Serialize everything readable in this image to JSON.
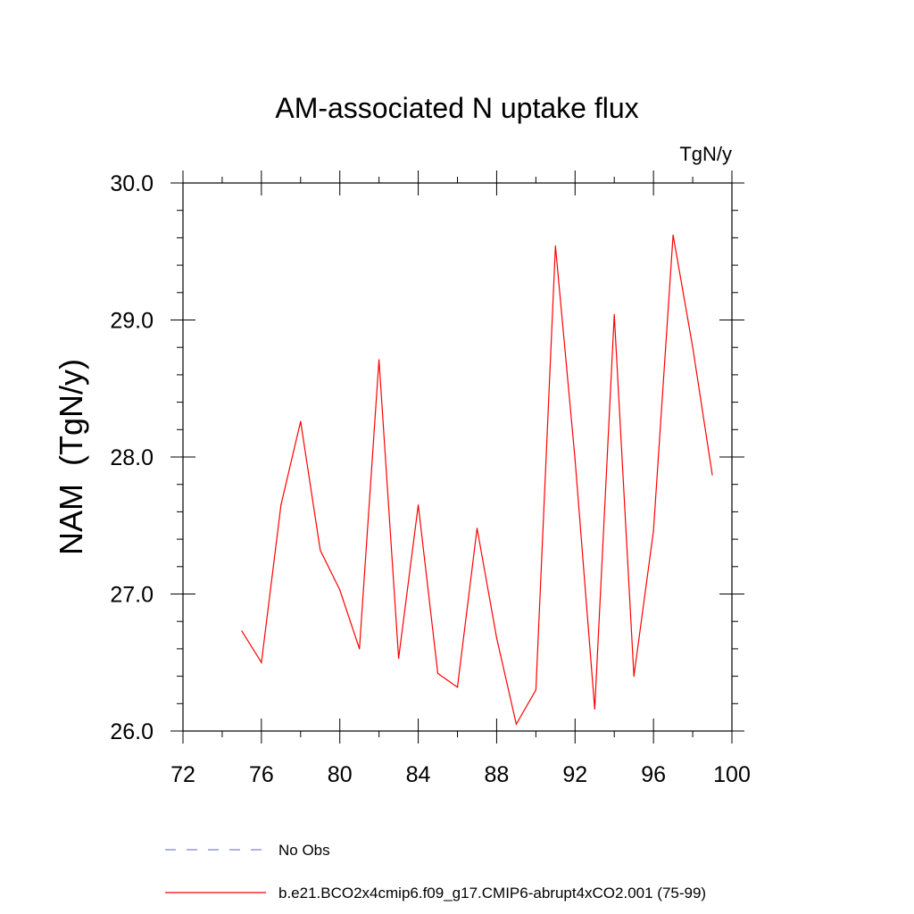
{
  "chart_data": {
    "type": "line",
    "title": "AM-associated N uptake flux",
    "units": "TgN/y",
    "ylabel": "NAM  (TgN/y)",
    "xlabel": "",
    "xlim": [
      72,
      100
    ],
    "ylim": [
      26.0,
      30.0
    ],
    "xticks": [
      "72",
      "76",
      "80",
      "84",
      "88",
      "92",
      "96",
      "100"
    ],
    "yticks": [
      "26.0",
      "27.0",
      "28.0",
      "29.0",
      "30.0"
    ],
    "grid": false,
    "legend_position": "bottom",
    "series": [
      {
        "name": "No Obs",
        "color": "#8080d0",
        "dash": "dashed",
        "x": [],
        "y": []
      },
      {
        "name": "b.e21.BCO2x4cmip6.f09_g17.CMIP6-abrupt4xCO2.001 (75-99)",
        "color": "#ff0000",
        "dash": "solid",
        "x": [
          75,
          76,
          77,
          78,
          79,
          80,
          81,
          82,
          83,
          84,
          85,
          86,
          87,
          88,
          89,
          90,
          91,
          92,
          93,
          94,
          95,
          96,
          97,
          98,
          99
        ],
        "y": [
          26.73,
          26.5,
          27.65,
          28.26,
          27.32,
          27.03,
          26.6,
          28.71,
          26.53,
          27.65,
          26.42,
          26.32,
          27.48,
          26.68,
          26.05,
          26.3,
          29.54,
          27.98,
          26.16,
          29.04,
          26.4,
          27.46,
          29.62,
          28.8,
          27.87
        ]
      }
    ]
  }
}
